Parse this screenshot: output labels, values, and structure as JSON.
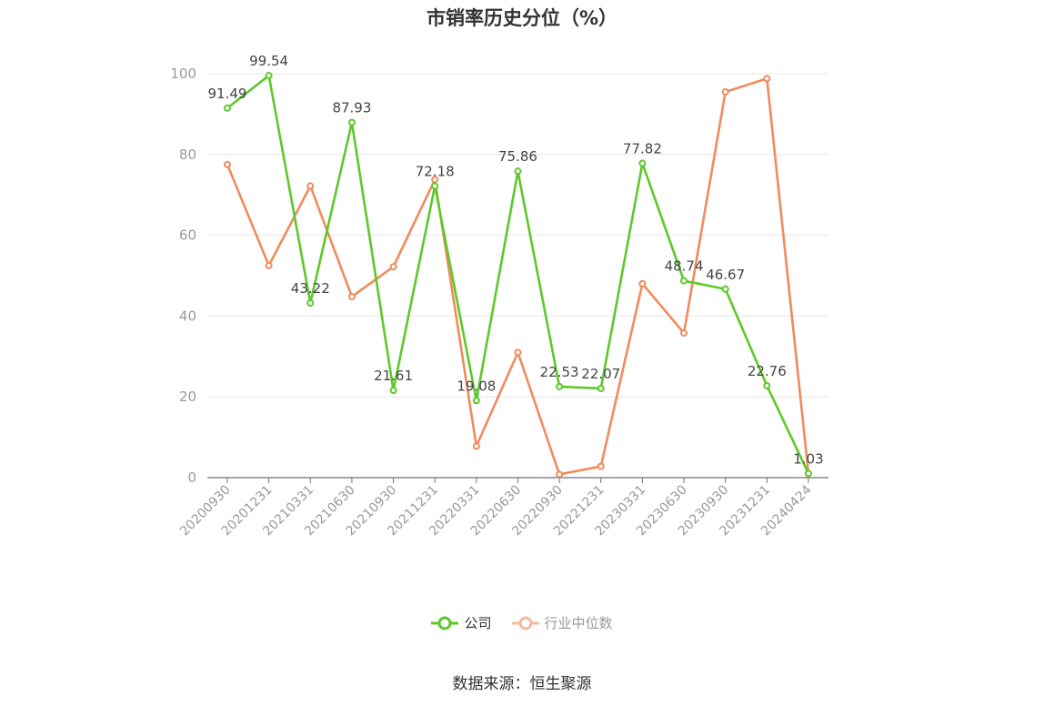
{
  "chart_data": {
    "type": "line",
    "title": "市销率历史分位（%）",
    "categories": [
      "20200930",
      "20201231",
      "20210331",
      "20210630",
      "20210930",
      "20211231",
      "20220331",
      "20220630",
      "20220930",
      "20221231",
      "20230331",
      "20230630",
      "20230930",
      "20231231",
      "20240424"
    ],
    "ylim": [
      0,
      100
    ],
    "yticks": [
      "0",
      "20",
      "40",
      "60",
      "80",
      "100"
    ],
    "grid": true,
    "legend_position": "bottom",
    "series": [
      {
        "name": "公司",
        "color": "#5cc92a",
        "values": [
          91.49,
          99.54,
          43.22,
          87.93,
          21.61,
          72.18,
          19.08,
          75.86,
          22.53,
          22.07,
          77.82,
          48.74,
          46.67,
          22.76,
          1.03
        ],
        "labels": [
          "91.49",
          "99.54",
          "43.22",
          "87.93",
          "21.61",
          "72.18",
          "19.08",
          "75.86",
          "22.53",
          "22.07",
          "77.82",
          "48.74",
          "46.67",
          "22.76",
          "1.03"
        ]
      },
      {
        "name": "行业中位数",
        "color": "#f08b5b",
        "values": [
          77.5,
          52.5,
          72.2,
          44.8,
          52.2,
          73.8,
          7.8,
          31.0,
          0.8,
          2.8,
          48.0,
          35.8,
          95.5,
          98.8,
          1.0
        ]
      }
    ]
  },
  "legend": {
    "company_label": "公司",
    "industry_label": "行业中位数",
    "industry_legend_color": "#f7b9a0"
  },
  "footer": {
    "source": "数据来源：恒生聚源"
  }
}
